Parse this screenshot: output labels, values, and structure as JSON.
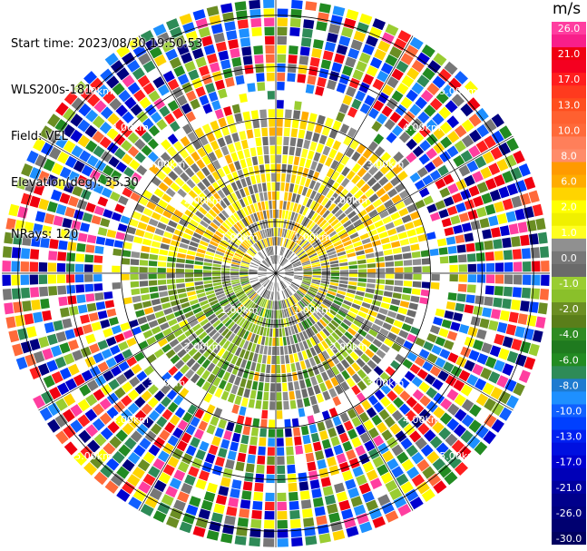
{
  "info": {
    "start_time": "Start time: 2023/08/30 19:50:53",
    "instrument": "WLS200s-181",
    "field": "Field: VEL",
    "elevation": "Elevation(deg): 35.30",
    "nrays": "NRays: 120"
  },
  "colorbar": {
    "unit": "m/s",
    "bins": [
      {
        "label": "26.0",
        "color": "#ff3ea0"
      },
      {
        "label": "",
        "color": "#f81f8a"
      },
      {
        "label": "21.0",
        "color": "#f00010"
      },
      {
        "label": "",
        "color": "#f40020"
      },
      {
        "label": "17.0",
        "color": "#ff1e1e"
      },
      {
        "label": "",
        "color": "#ff3a1e"
      },
      {
        "label": "13.0",
        "color": "#ff4e1e"
      },
      {
        "label": "",
        "color": "#ff6030"
      },
      {
        "label": "10.0",
        "color": "#ff6a3a"
      },
      {
        "label": "",
        "color": "#ff7f5a"
      },
      {
        "label": "8.0",
        "color": "#ff8c6a"
      },
      {
        "label": "",
        "color": "#ff9a00"
      },
      {
        "label": "6.0",
        "color": "#ffac00"
      },
      {
        "label": "",
        "color": "#ffd400"
      },
      {
        "label": "2.0",
        "color": "#ffff00"
      },
      {
        "label": "",
        "color": "#f0f000"
      },
      {
        "label": "1.0",
        "color": "#ffff20"
      },
      {
        "label": "",
        "color": "#909090"
      },
      {
        "label": "0.0",
        "color": "#777777"
      },
      {
        "label": "",
        "color": "#6a6a6a"
      },
      {
        "label": "-1.0",
        "color": "#9acd32"
      },
      {
        "label": "",
        "color": "#8ac02a"
      },
      {
        "label": "-2.0",
        "color": "#6b8e23"
      },
      {
        "label": "",
        "color": "#5a7e1a"
      },
      {
        "label": "-4.0",
        "color": "#2e8b22"
      },
      {
        "label": "",
        "color": "#1f7a1f"
      },
      {
        "label": "-6.0",
        "color": "#228b22"
      },
      {
        "label": "",
        "color": "#2e8b57"
      },
      {
        "label": "-8.0",
        "color": "#1e7bd0"
      },
      {
        "label": "",
        "color": "#1e90ff"
      },
      {
        "label": "-10.0",
        "color": "#1060ff"
      },
      {
        "label": "",
        "color": "#0040ff"
      },
      {
        "label": "-13.0",
        "color": "#0020f0"
      },
      {
        "label": "",
        "color": "#0010e0"
      },
      {
        "label": "-17.0",
        "color": "#0000d0"
      },
      {
        "label": "",
        "color": "#0000b8"
      },
      {
        "label": "-21.0",
        "color": "#0000a0"
      },
      {
        "label": "",
        "color": "#00008b"
      },
      {
        "label": "-26.0",
        "color": "#000080"
      },
      {
        "label": "",
        "color": "#000070"
      },
      {
        "label": "-30.0",
        "color": "#000060"
      }
    ]
  },
  "range_rings": {
    "labels": [
      "1.00km",
      "2.00km",
      "3.00km",
      "4.00km",
      "5.00km"
    ],
    "ring_color": "#000000",
    "label_color": "#ffffff"
  },
  "field_palette": {
    "near_positive": [
      "#ffff00",
      "#ffd400",
      "#ffff20",
      "#ffac00"
    ],
    "near_zero": [
      "#777777",
      "#6a6a6a",
      "#909090"
    ],
    "near_negative": [
      "#9acd32",
      "#6b8e23",
      "#8ac02a",
      "#2e8b22"
    ],
    "noise": [
      "#ff3ea0",
      "#f00010",
      "#ff1e1e",
      "#ffff00",
      "#ffd400",
      "#777777",
      "#9acd32",
      "#6b8e23",
      "#228b22",
      "#1e90ff",
      "#0040ff",
      "#0000d0",
      "#000080",
      "#ff6a3a",
      "#ffffff",
      "#2e8b57",
      "#1060ff"
    ]
  }
}
